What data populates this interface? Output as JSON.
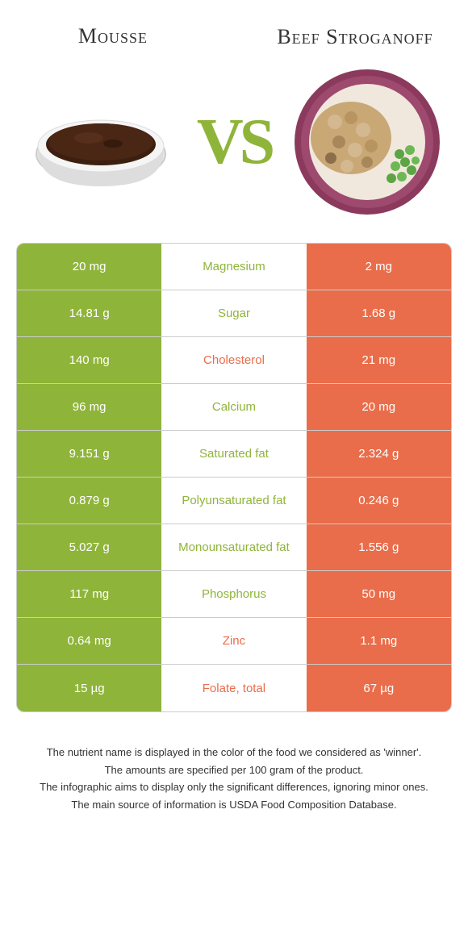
{
  "colors": {
    "green": "#8fb43a",
    "orange": "#e96d4b"
  },
  "foods": {
    "left": {
      "name": "Mousse"
    },
    "right": {
      "name": "Beef Stroganoff"
    }
  },
  "vs": "VS",
  "rows": [
    {
      "left": "20 mg",
      "nutrient": "Magnesium",
      "right": "2 mg",
      "winner": "left"
    },
    {
      "left": "14.81 g",
      "nutrient": "Sugar",
      "right": "1.68 g",
      "winner": "left"
    },
    {
      "left": "140 mg",
      "nutrient": "Cholesterol",
      "right": "21 mg",
      "winner": "right"
    },
    {
      "left": "96 mg",
      "nutrient": "Calcium",
      "right": "20 mg",
      "winner": "left"
    },
    {
      "left": "9.151 g",
      "nutrient": "Saturated fat",
      "right": "2.324 g",
      "winner": "left"
    },
    {
      "left": "0.879 g",
      "nutrient": "Polyunsaturated fat",
      "right": "0.246 g",
      "winner": "left"
    },
    {
      "left": "5.027 g",
      "nutrient": "Monounsaturated fat",
      "right": "1.556 g",
      "winner": "left"
    },
    {
      "left": "117 mg",
      "nutrient": "Phosphorus",
      "right": "50 mg",
      "winner": "left"
    },
    {
      "left": "0.64 mg",
      "nutrient": "Zinc",
      "right": "1.1 mg",
      "winner": "right"
    },
    {
      "left": "15 µg",
      "nutrient": "Folate, total",
      "right": "67 µg",
      "winner": "right"
    }
  ],
  "footer": [
    "The nutrient name is displayed in the color of the food we considered as 'winner'.",
    "The amounts are specified per 100 gram of the product.",
    "The infographic aims to display only the significant differences, ignoring minor ones.",
    "The main source of information is USDA Food Composition Database."
  ]
}
